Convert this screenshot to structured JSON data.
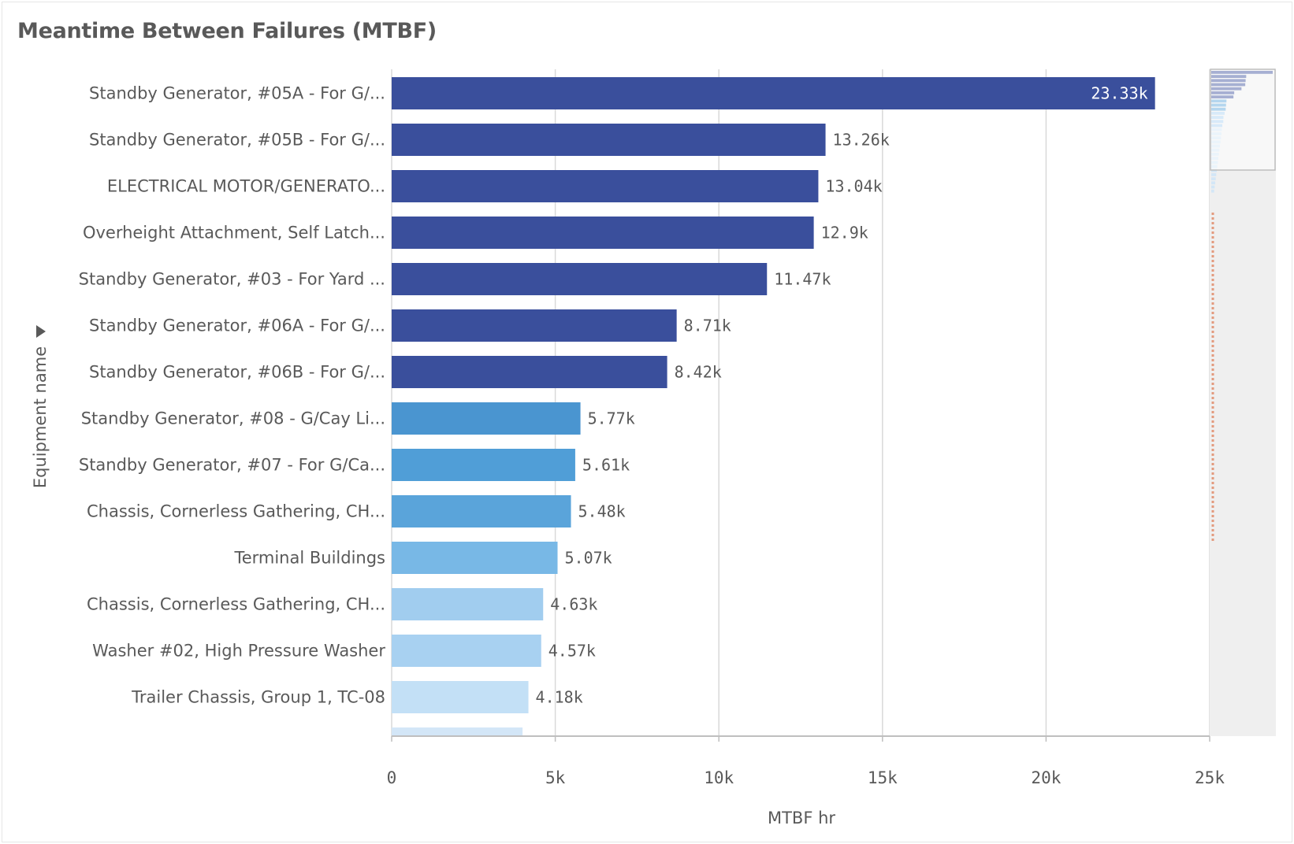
{
  "chart_data": {
    "type": "bar",
    "orientation": "horizontal",
    "title": "Meantime Between Failures (MTBF)",
    "xlabel": "MTBF hr",
    "ylabel": "Equipment name",
    "xlim": [
      0,
      25000
    ],
    "xticks": [
      0,
      5000,
      10000,
      15000,
      20000,
      25000
    ],
    "xtick_labels": [
      "0",
      "5k",
      "10k",
      "15k",
      "20k",
      "25k"
    ],
    "grid": true,
    "categories": [
      "Standby Generator, #05A - For G/...",
      "Standby Generator, #05B - For G/...",
      "ELECTRICAL MOTOR/GENERATO...",
      "Overheight Attachment, Self Latch...",
      "Standby Generator, #03 - For Yard ...",
      "Standby Generator, #06A - For G/...",
      "Standby Generator, #06B - For G/...",
      "Standby Generator, #08 - G/Cay Li...",
      "Standby Generator, #07 - For G/Ca...",
      "Chassis, Cornerless Gathering, CH...",
      "Terminal Buildings",
      "Chassis, Cornerless Gathering, CH...",
      "Washer #02, High Pressure Washer",
      "Trailer Chassis, Group 1, TC-08"
    ],
    "values": [
      23330,
      13260,
      13040,
      12900,
      11470,
      8710,
      8420,
      5770,
      5610,
      5480,
      5070,
      4630,
      4570,
      4180
    ],
    "value_labels": [
      "23.33k",
      "13.26k",
      "13.04k",
      "12.9k",
      "11.47k",
      "8.71k",
      "8.42k",
      "5.77k",
      "5.61k",
      "5.48k",
      "5.07k",
      "4.63k",
      "4.57k",
      "4.18k"
    ],
    "bar_colors": [
      "#3a4f9c",
      "#3a4f9c",
      "#3a4f9c",
      "#3a4f9c",
      "#3a4f9c",
      "#3a4f9c",
      "#3a4f9c",
      "#4a95d0",
      "#509ed7",
      "#5aa4da",
      "#78b8e6",
      "#a1cdef",
      "#a8d1f1",
      "#c3e0f6"
    ],
    "partial_next_bar": {
      "value": 4000,
      "color": "#d3e6f7"
    },
    "minimap_values": [
      23330,
      13260,
      13040,
      12900,
      11470,
      8710,
      8420,
      5770,
      5610,
      5480,
      5070,
      4630,
      4570,
      4180,
      4000,
      3900,
      3700,
      3500,
      3300,
      3100,
      2900,
      2700,
      2500,
      2300,
      2100,
      1900,
      1700,
      1500,
      1300,
      1100
    ]
  }
}
